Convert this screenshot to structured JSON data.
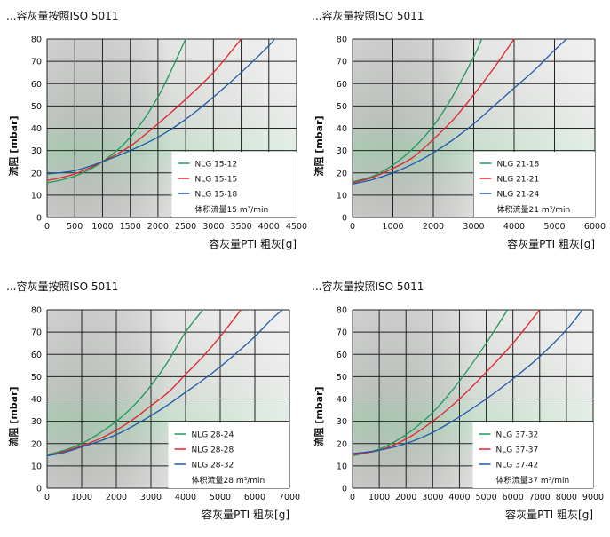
{
  "chart_data": [
    {
      "type": "line",
      "title": "...容灰量按照ISO 5011",
      "xlabel": "容灰量PTI 粗灰[g]",
      "ylabel": "流阻 [mbar]",
      "xlim": [
        0,
        4500
      ],
      "ylim": [
        0,
        80
      ],
      "xticks": [
        0,
        500,
        1000,
        1500,
        2000,
        2500,
        3000,
        3500,
        4000,
        4500
      ],
      "yticks": [
        0,
        10,
        20,
        30,
        40,
        50,
        60,
        70,
        80
      ],
      "grid": true,
      "legend_position": "bottom-right",
      "legend_note": "体积流量15 m³/min",
      "series": [
        {
          "name": "NLG 15-12",
          "color": "#1e9a5a",
          "x": [
            0,
            500,
            1000,
            1500,
            2000,
            2500
          ],
          "y": [
            15.5,
            18.5,
            25,
            36,
            54,
            80
          ]
        },
        {
          "name": "NLG 15-15",
          "color": "#e2242c",
          "x": [
            0,
            500,
            1000,
            1500,
            2000,
            2500,
            3000,
            3500
          ],
          "y": [
            16.5,
            19.5,
            25,
            32,
            42,
            53,
            65,
            80
          ]
        },
        {
          "name": "NLG 15-18",
          "color": "#1c5aa8",
          "x": [
            0,
            500,
            1000,
            1500,
            2000,
            2500,
            3000,
            3500,
            4000,
            4100
          ],
          "y": [
            19.5,
            21,
            25,
            30,
            36,
            44,
            54,
            65,
            77,
            80
          ]
        }
      ]
    },
    {
      "type": "line",
      "title": "...容灰量按照ISO 5011",
      "xlabel": "容灰量PTI 粗灰[g]",
      "ylabel": "流阻 [mbar]",
      "xlim": [
        0,
        6000
      ],
      "ylim": [
        0,
        80
      ],
      "xticks": [
        0,
        1000,
        2000,
        3000,
        4000,
        5000,
        6000
      ],
      "yticks": [
        0,
        10,
        20,
        30,
        40,
        50,
        60,
        70,
        80
      ],
      "grid": true,
      "legend_position": "bottom-right",
      "legend_note": "体积流量21 m³/min",
      "series": [
        {
          "name": "NLG 21-18",
          "color": "#1e9a5a",
          "x": [
            0,
            500,
            1000,
            1500,
            2000,
            2500,
            3000,
            3200
          ],
          "y": [
            16,
            18.5,
            23.5,
            31,
            41,
            55,
            72,
            80
          ]
        },
        {
          "name": "NLG 21-21",
          "color": "#e2242c",
          "x": [
            0,
            500,
            1000,
            1500,
            2000,
            2500,
            3000,
            3500,
            4000
          ],
          "y": [
            15.5,
            18,
            22,
            27,
            35,
            44,
            55,
            67,
            80
          ]
        },
        {
          "name": "NLG 21-24",
          "color": "#1c5aa8",
          "x": [
            0,
            500,
            1000,
            1500,
            2000,
            2500,
            3000,
            3500,
            4000,
            4500,
            5000,
            5300
          ],
          "y": [
            15,
            17,
            20,
            24,
            29,
            35,
            42,
            50,
            58,
            66,
            75,
            80
          ]
        }
      ]
    },
    {
      "type": "line",
      "title": "...容灰量按照ISO 5011",
      "xlabel": "容灰量PTI 粗灰[g]",
      "ylabel": "流阻 [mbar]",
      "xlim": [
        0,
        7000
      ],
      "ylim": [
        0,
        80
      ],
      "xticks": [
        0,
        1000,
        2000,
        3000,
        4000,
        5000,
        6000,
        7000
      ],
      "yticks": [
        0,
        10,
        20,
        30,
        40,
        50,
        60,
        70,
        80
      ],
      "grid": true,
      "legend_position": "bottom-right",
      "legend_note": "体积流量28 m³/min",
      "series": [
        {
          "name": "NLG 28-24",
          "color": "#1e9a5a",
          "x": [
            0,
            500,
            1000,
            1500,
            2000,
            2500,
            3000,
            3500,
            4000,
            4500
          ],
          "y": [
            15,
            17,
            20,
            24.5,
            30,
            37,
            46,
            57,
            70,
            80
          ]
        },
        {
          "name": "NLG 28-28",
          "color": "#e2242c",
          "x": [
            0,
            500,
            1000,
            1500,
            2000,
            2500,
            3000,
            3500,
            4000,
            4500,
            5000,
            5600
          ],
          "y": [
            14.5,
            16.5,
            19,
            22,
            26,
            31,
            37,
            43,
            51,
            59,
            68,
            80
          ]
        },
        {
          "name": "NLG 28-32",
          "color": "#1c5aa8",
          "x": [
            0,
            500,
            1000,
            1500,
            2000,
            2500,
            3000,
            3500,
            4000,
            4500,
            5000,
            5500,
            6000,
            6500,
            6800
          ],
          "y": [
            14.5,
            16,
            18.5,
            21,
            24,
            28,
            32.5,
            37.5,
            43,
            48.5,
            54.5,
            61,
            68,
            76,
            80
          ]
        }
      ]
    },
    {
      "type": "line",
      "title": "...容灰量按照ISO 5011",
      "xlabel": "容灰量PTI 粗灰[g]",
      "ylabel": "流阻 [mbar]",
      "xlim": [
        0,
        9000
      ],
      "ylim": [
        0,
        80
      ],
      "xticks": [
        0,
        1000,
        2000,
        3000,
        4000,
        5000,
        6000,
        7000,
        8000,
        9000
      ],
      "yticks": [
        0,
        10,
        20,
        30,
        40,
        50,
        60,
        70,
        80
      ],
      "grid": true,
      "legend_position": "bottom-right",
      "legend_note": "体积流量37 m³/min",
      "series": [
        {
          "name": "NLG 37-32",
          "color": "#1e9a5a",
          "x": [
            0,
            1000,
            2000,
            3000,
            4000,
            5000,
            5800
          ],
          "y": [
            14.5,
            17.5,
            24,
            34,
            48,
            65,
            80
          ]
        },
        {
          "name": "NLG 37-37",
          "color": "#e2242c",
          "x": [
            0,
            1000,
            2000,
            3000,
            4000,
            5000,
            6000,
            7000
          ],
          "y": [
            15,
            17,
            22,
            30,
            40,
            52,
            65,
            80
          ]
        },
        {
          "name": "NLG 37-42",
          "color": "#1c5aa8",
          "x": [
            0,
            1000,
            2000,
            3000,
            4000,
            5000,
            6000,
            7000,
            8000,
            8600
          ],
          "y": [
            15.5,
            17,
            20,
            25,
            32,
            40,
            49,
            59,
            71,
            80
          ]
        }
      ]
    }
  ]
}
